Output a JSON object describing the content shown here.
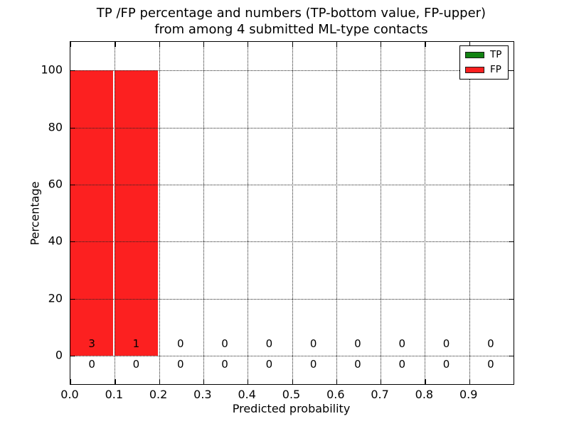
{
  "title": {
    "line1": "TP /FP percentage and numbers (TP-bottom value, FP-upper)",
    "line2": "from among 4 submitted ML-type contacts"
  },
  "axes": {
    "xlabel": "Predicted probability",
    "ylabel": "Percentage"
  },
  "legend": {
    "items": [
      {
        "label": "TP",
        "color": "#128312"
      },
      {
        "label": "FP",
        "color": "#fc2020"
      }
    ]
  },
  "chart_data": {
    "type": "bar",
    "stacked": true,
    "title": "TP /FP percentage and numbers (TP-bottom value, FP-upper) from among 4 submitted ML-type contacts",
    "xlabel": "Predicted probability",
    "ylabel": "Percentage",
    "bin_edges": [
      0.0,
      0.1,
      0.2,
      0.3,
      0.4,
      0.5,
      0.6,
      0.7,
      0.8,
      0.9,
      1.0
    ],
    "series": [
      {
        "name": "TP",
        "color": "#128312",
        "percent": [
          0,
          0,
          0,
          0,
          0,
          0,
          0,
          0,
          0,
          0
        ],
        "counts": [
          0,
          0,
          0,
          0,
          0,
          0,
          0,
          0,
          0,
          0
        ],
        "count_row": "lower"
      },
      {
        "name": "FP",
        "color": "#fc2020",
        "percent": [
          100,
          100,
          0,
          0,
          0,
          0,
          0,
          0,
          0,
          0
        ],
        "counts": [
          3,
          1,
          0,
          0,
          0,
          0,
          0,
          0,
          0,
          0
        ],
        "count_row": "upper"
      }
    ],
    "x_ticks": [
      {
        "value": 0.0,
        "label": "0.0"
      },
      {
        "value": 0.1,
        "label": "0.1"
      },
      {
        "value": 0.2,
        "label": "0.2"
      },
      {
        "value": 0.3,
        "label": "0.3"
      },
      {
        "value": 0.4,
        "label": "0.4"
      },
      {
        "value": 0.5,
        "label": "0.5"
      },
      {
        "value": 0.6,
        "label": "0.6"
      },
      {
        "value": 0.7,
        "label": "0.7"
      },
      {
        "value": 0.8,
        "label": "0.8"
      },
      {
        "value": 0.9,
        "label": "0.9"
      }
    ],
    "y_ticks": [
      {
        "value": 0,
        "label": "0"
      },
      {
        "value": 20,
        "label": "20"
      },
      {
        "value": 40,
        "label": "40"
      },
      {
        "value": 60,
        "label": "60"
      },
      {
        "value": 80,
        "label": "80"
      },
      {
        "value": 100,
        "label": "100"
      }
    ],
    "xlim": [
      0.0,
      1.0
    ],
    "ylim": [
      -10,
      110
    ],
    "grid": true,
    "legend_position": "upper right"
  }
}
